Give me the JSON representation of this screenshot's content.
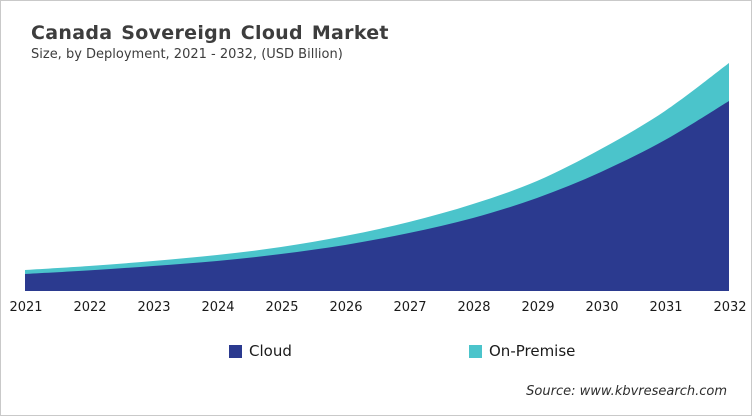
{
  "header": {
    "title": "Canada Sovereign Cloud Market",
    "subtitle": "Size, by Deployment, 2021 - 2032, (USD Billion)"
  },
  "chart_data": {
    "type": "area",
    "stacked": true,
    "title": "Canada Sovereign Cloud Market",
    "subtitle": "Size, by Deployment, 2021 - 2032, (USD Billion)",
    "xlabel": "",
    "ylabel": "",
    "units": "USD Billion (y-axis unlabeled in chart; values estimated, relative)",
    "y_axis_visible": false,
    "grid": false,
    "legend_position": "bottom",
    "x": [
      2021,
      2022,
      2023,
      2024,
      2025,
      2026,
      2027,
      2028,
      2029,
      2030,
      2031,
      2032
    ],
    "x_tick_labels": [
      "2021",
      "2022",
      "2023",
      "2024",
      "2025",
      "2026",
      "2027",
      "2028",
      "2029",
      "2030",
      "2031",
      "2032"
    ],
    "series": [
      {
        "name": "Cloud",
        "color": "#2B3A8F",
        "values": [
          0.85,
          1.03,
          1.25,
          1.5,
          1.85,
          2.3,
          2.9,
          3.65,
          4.65,
          5.95,
          7.55,
          9.5
        ]
      },
      {
        "name": "On-Premise",
        "color": "#4BC4CB",
        "values": [
          0.2,
          0.22,
          0.25,
          0.3,
          0.35,
          0.45,
          0.55,
          0.7,
          0.85,
          1.15,
          1.45,
          1.9
        ]
      }
    ]
  },
  "legend": {
    "items": [
      {
        "label": "Cloud",
        "color": "#2B3A8F"
      },
      {
        "label": "On-Premise",
        "color": "#4BC4CB"
      }
    ]
  },
  "source": {
    "text": "Source: www.kbvresearch.com"
  }
}
